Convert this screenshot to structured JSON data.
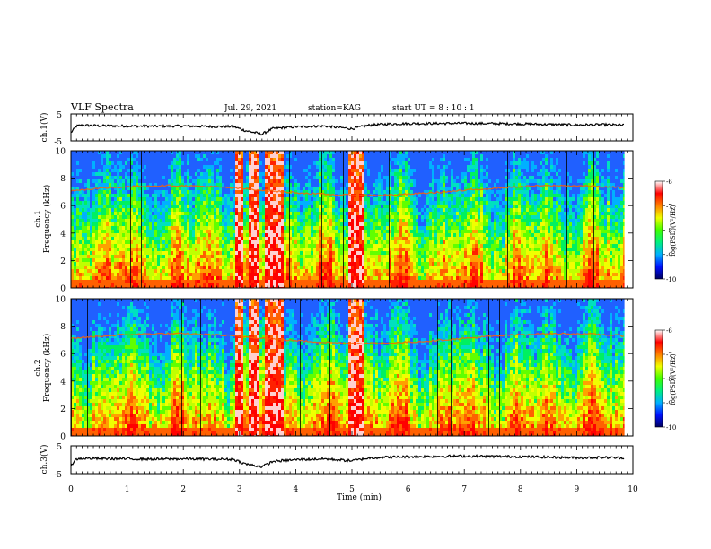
{
  "header": {
    "title": "VLF Spectra",
    "date": "Jul. 29, 2021",
    "station": "station=KAG",
    "start": "start UT = 8 : 10 : 1"
  },
  "colors": {
    "spectrum_gradient": [
      "#000060",
      "#0010ff",
      "#00b0ff",
      "#00f080",
      "#40ff00",
      "#f0ff00",
      "#ff8000",
      "#ff0000",
      "#ffffff"
    ],
    "waveform": "#000000"
  },
  "chart_data": [
    {
      "type": "line",
      "name": "ch1-voltage",
      "ylabel": "ch.1(V)",
      "ylim": [
        -5,
        5
      ],
      "yticks": [
        "5",
        "-5"
      ],
      "xlim": [
        0,
        10
      ],
      "x": [
        0,
        0.1,
        0.2,
        0.5,
        1,
        1.5,
        2,
        2.5,
        2.9,
        3.1,
        3.4,
        3.6,
        4,
        4.5,
        5,
        5.3,
        5.6,
        6,
        7,
        8,
        9,
        9.5,
        9.85
      ],
      "y": [
        -2,
        0.5,
        0.8,
        0.6,
        0.5,
        0.4,
        0.5,
        0.3,
        0.3,
        -1.2,
        -2.5,
        -0.4,
        0.2,
        0.5,
        -0.5,
        0.8,
        1.2,
        1.4,
        1.5,
        1.3,
        0.9,
        1.0,
        0.8
      ]
    },
    {
      "type": "heatmap",
      "name": "ch1-spectrogram",
      "ylabel": "ch.1\nFrequency (kHz)",
      "ylim": [
        0,
        10
      ],
      "yticks": [
        "0",
        "2",
        "4",
        "6",
        "8",
        "10"
      ],
      "xlim": [
        0,
        10
      ],
      "colorbar": {
        "label": "log(PSD)(V²/Hz)",
        "range": [
          -10,
          -6
        ],
        "ticks": [
          "-6",
          "-7",
          "-8",
          "-9",
          "-10"
        ]
      }
    },
    {
      "type": "heatmap",
      "name": "ch2-spectrogram",
      "ylabel": "ch.2\nFrequency (kHz)",
      "ylim": [
        0,
        10
      ],
      "yticks": [
        "0",
        "2",
        "4",
        "6",
        "8",
        "10"
      ],
      "xlim": [
        0,
        10
      ],
      "colorbar": {
        "label": "log(PSD)(V²/Hz)",
        "range": [
          -10,
          -6
        ],
        "ticks": [
          "-6",
          "-7",
          "-8",
          "-9",
          "-10"
        ]
      }
    },
    {
      "type": "line",
      "name": "ch3-voltage",
      "ylabel": "ch.3(V)",
      "ylim": [
        -5,
        5
      ],
      "yticks": [
        "5",
        "-5"
      ],
      "xlim": [
        0,
        10
      ],
      "x": [
        0,
        0.1,
        0.2,
        0.5,
        1,
        1.5,
        2,
        2.5,
        2.9,
        3.1,
        3.4,
        3.6,
        4,
        4.5,
        5,
        5.3,
        5.6,
        6,
        7,
        8,
        9,
        9.5,
        9.85
      ],
      "y": [
        -2,
        0.2,
        0.5,
        0.4,
        0.3,
        0.2,
        0.3,
        0.2,
        0.1,
        -1.5,
        -2.5,
        -0.6,
        0.0,
        0.3,
        -0.4,
        0.6,
        0.9,
        1.1,
        1.3,
        1.1,
        0.7,
        0.8,
        0.6
      ]
    }
  ],
  "xaxis": {
    "label": "Time (min)",
    "ticks": [
      "0",
      "1",
      "2",
      "3",
      "4",
      "5",
      "6",
      "7",
      "8",
      "9",
      "10"
    ]
  }
}
